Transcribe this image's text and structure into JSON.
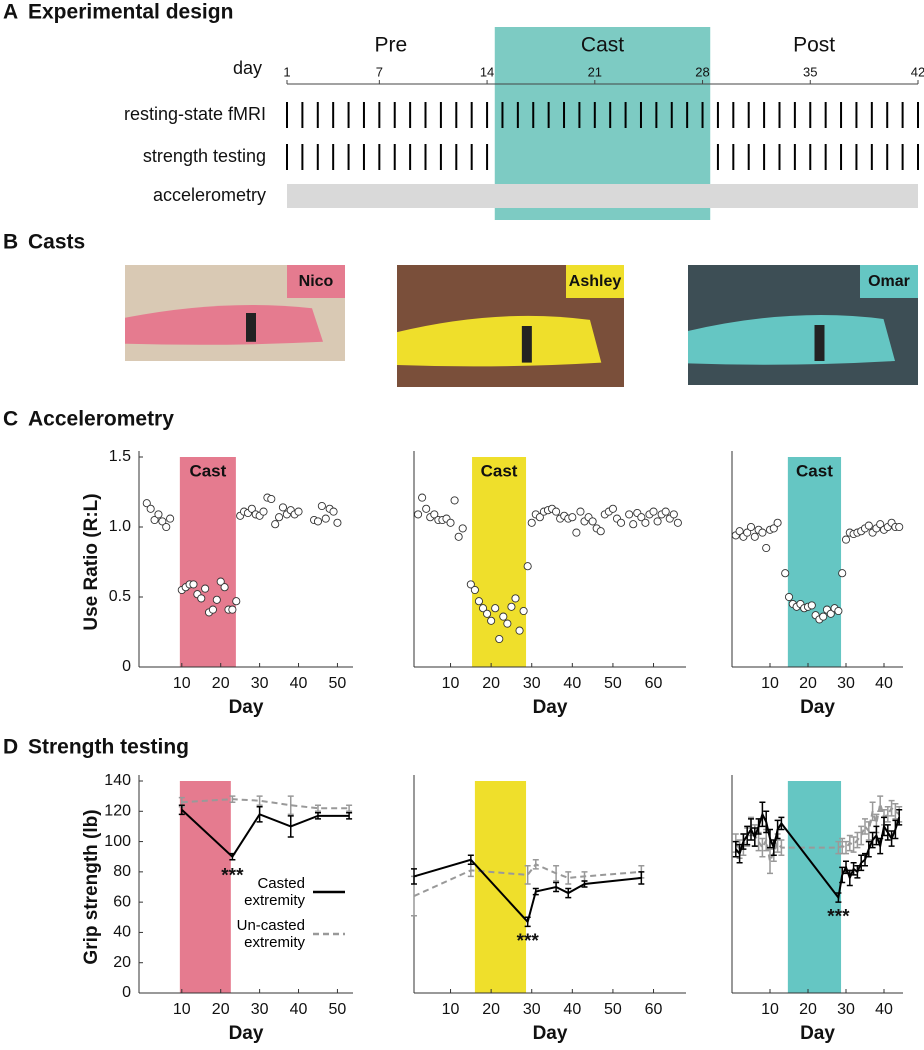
{
  "panels": [
    {
      "letter": "A",
      "title": "Experimental design"
    },
    {
      "letter": "B",
      "title": "Casts"
    },
    {
      "letter": "C",
      "title": "Accelerometry"
    },
    {
      "letter": "D",
      "title": "Strength testing"
    }
  ],
  "design": {
    "type": "timeline",
    "axis_label": "day",
    "xlim": [
      1,
      42
    ],
    "xticks": [
      1,
      7,
      14,
      21,
      28,
      35,
      42
    ],
    "phases": [
      {
        "name": "Pre",
        "range": [
          1,
          14.5
        ]
      },
      {
        "name": "Cast",
        "range": [
          14.5,
          28.5
        ],
        "color": "#7dcbc3"
      },
      {
        "name": "Post",
        "range": [
          28.5,
          42
        ]
      }
    ],
    "rows": [
      {
        "name": "resting-state fMRI",
        "days": [
          1,
          2,
          3,
          4,
          5,
          6,
          7,
          8,
          9,
          10,
          11,
          12,
          13,
          14,
          15,
          16,
          17,
          18,
          19,
          20,
          21,
          22,
          23,
          24,
          25,
          26,
          27,
          28,
          29,
          30,
          31,
          32,
          33,
          34,
          35,
          36,
          37,
          38,
          39,
          40,
          41,
          42
        ]
      },
      {
        "name": "strength testing",
        "days": [
          1,
          2,
          3,
          4,
          5,
          6,
          7,
          8,
          9,
          10,
          11,
          12,
          13,
          14,
          29,
          30,
          31,
          32,
          33,
          34,
          35,
          36,
          37,
          38,
          39,
          40,
          41,
          42
        ]
      },
      {
        "name": "accelerometry",
        "range": [
          1,
          42
        ],
        "color": "#d9d9d9"
      }
    ]
  },
  "casts": [
    {
      "name": "Nico",
      "color": "#e57b8f"
    },
    {
      "name": "Ashley",
      "color": "#efdf2b"
    },
    {
      "name": "Omar",
      "color": "#65c6c3"
    }
  ],
  "chart_data": [
    {
      "type": "scatter",
      "xlabel": "Day",
      "ylabel": "Use Ratio (R:L)",
      "xlim": [
        -1,
        54
      ],
      "xticks": [
        10,
        20,
        30,
        40,
        50
      ],
      "ylim": [
        0,
        1.5
      ],
      "yticks": [
        0,
        0.5,
        {
          "value": 1,
          "label": "1.0"
        },
        1.5
      ],
      "shade": {
        "label": "Cast",
        "range": [
          9.5,
          23.9
        ],
        "color": "#e57b8f"
      },
      "x": [
        1,
        2,
        3,
        4,
        5,
        6,
        7,
        10,
        11,
        12,
        13,
        14,
        15,
        16,
        17,
        18,
        19,
        20,
        21,
        22,
        23,
        24,
        25,
        26,
        27,
        28,
        29,
        30,
        31,
        32,
        33,
        34,
        35,
        36,
        37,
        38,
        39,
        40,
        44,
        45,
        46,
        47,
        48,
        49,
        50
      ],
      "values": [
        1.17,
        1.13,
        1.05,
        1.09,
        1.04,
        1.0,
        1.06,
        0.55,
        0.57,
        0.59,
        0.59,
        0.52,
        0.49,
        0.56,
        0.39,
        0.41,
        0.48,
        0.61,
        0.57,
        0.41,
        0.41,
        0.47,
        1.08,
        1.11,
        1.1,
        1.13,
        1.09,
        1.08,
        1.11,
        1.21,
        1.2,
        1.02,
        1.07,
        1.14,
        1.09,
        1.12,
        1.09,
        1.11,
        1.05,
        1.04,
        1.15,
        1.06,
        1.13,
        1.11,
        1.03
      ]
    },
    {
      "type": "scatter",
      "xlabel": "Day",
      "xlim": [
        1,
        68
      ],
      "xticks": [
        10,
        20,
        30,
        40,
        50,
        60
      ],
      "ylim": [
        0,
        1.5
      ],
      "shade": {
        "label": "Cast",
        "range": [
          15.3,
          28.6
        ],
        "color": "#efdf2b"
      },
      "x": [
        2,
        3,
        4,
        5,
        6,
        7,
        8,
        9,
        10,
        11,
        12,
        13,
        15,
        16,
        17,
        18,
        19,
        20,
        21,
        22,
        23,
        24,
        25,
        26,
        27,
        28,
        29,
        30,
        31,
        32,
        33,
        34,
        35,
        36,
        37,
        38,
        39,
        40,
        41,
        42,
        43,
        44,
        45,
        46,
        47,
        48,
        49,
        50,
        51,
        52,
        54,
        55,
        56,
        57,
        58,
        59,
        60,
        61,
        62,
        63,
        64,
        65,
        66
      ],
      "values": [
        1.09,
        1.21,
        1.13,
        1.07,
        1.09,
        1.05,
        1.05,
        1.06,
        1.03,
        1.19,
        0.93,
        0.99,
        0.59,
        0.55,
        0.47,
        0.42,
        0.38,
        0.33,
        0.42,
        0.2,
        0.36,
        0.31,
        0.43,
        0.49,
        0.26,
        0.4,
        0.72,
        1.03,
        1.09,
        1.07,
        1.11,
        1.12,
        1.13,
        1.11,
        1.06,
        1.08,
        1.06,
        1.07,
        0.96,
        1.11,
        1.04,
        1.07,
        1.04,
        0.99,
        0.97,
        1.09,
        1.11,
        1.13,
        1.06,
        1.03,
        1.09,
        1.02,
        1.1,
        1.07,
        1.03,
        1.09,
        1.11,
        1.04,
        1.09,
        1.11,
        1.06,
        1.09,
        1.03
      ]
    },
    {
      "type": "scatter",
      "xlabel": "Day",
      "xlim": [
        0,
        45
      ],
      "xticks": [
        10,
        20,
        30,
        40
      ],
      "ylim": [
        0,
        1.5
      ],
      "shade": {
        "label": "Cast",
        "range": [
          14.7,
          28.7
        ],
        "color": "#65c6c3"
      },
      "x": [
        1,
        2,
        3,
        4,
        5,
        6,
        7,
        8,
        9,
        10,
        11,
        12,
        14,
        15,
        16,
        17,
        18,
        19,
        20,
        21,
        22,
        23,
        24,
        25,
        26,
        27,
        28,
        29,
        30,
        31,
        32,
        33,
        34,
        35,
        36,
        37,
        38,
        39,
        40,
        41,
        42,
        43,
        44
      ],
      "values": [
        0.94,
        0.97,
        0.93,
        0.96,
        1.0,
        0.93,
        0.98,
        0.96,
        0.85,
        0.98,
        0.99,
        1.03,
        0.67,
        0.5,
        0.45,
        0.43,
        0.45,
        0.42,
        0.43,
        0.44,
        0.37,
        0.34,
        0.36,
        0.41,
        0.38,
        0.42,
        0.4,
        0.67,
        0.91,
        0.96,
        0.95,
        0.96,
        0.97,
        0.99,
        1.01,
        0.96,
        0.99,
        1.02,
        0.98,
        1.0,
        1.03,
        1.0,
        1.0
      ]
    },
    {
      "type": "line",
      "xlabel": "Day",
      "ylabel": "Grip strength (lb)",
      "xlim": [
        -1,
        54
      ],
      "xticks": [
        10,
        20,
        30,
        40,
        50
      ],
      "ylim": [
        0,
        140
      ],
      "yticks": [
        0,
        20,
        40,
        60,
        80,
        100,
        120,
        140
      ],
      "shade": {
        "range": [
          9.5,
          22.6
        ],
        "color": "#e57b8f"
      },
      "annotation": "***",
      "legend": "lower right",
      "series": [
        {
          "name": "Casted extremity",
          "color": "#000000",
          "dash": false,
          "x": [
            10,
            23,
            30,
            38,
            45,
            53
          ],
          "values": [
            121,
            90,
            118,
            110,
            117,
            117
          ],
          "errors": [
            3,
            2,
            5,
            7,
            2,
            2
          ]
        },
        {
          "name": "Un-casted extremity",
          "color": "#999999",
          "dash": true,
          "x": [
            10,
            23,
            30,
            38,
            45,
            53
          ],
          "values": [
            126,
            128,
            127,
            124,
            122,
            122
          ],
          "errors": [
            3,
            2,
            3,
            6,
            2,
            2
          ]
        }
      ]
    },
    {
      "type": "line",
      "xlabel": "Day",
      "xlim": [
        1,
        68
      ],
      "xticks": [
        10,
        20,
        30,
        40,
        50,
        60
      ],
      "ylim": [
        0,
        140
      ],
      "shade": {
        "range": [
          16,
          28.6
        ],
        "color": "#efdf2b"
      },
      "annotation": "***",
      "series": [
        {
          "color": "#000000",
          "dash": false,
          "x": [
            1,
            15,
            29,
            31,
            36,
            39,
            43,
            57
          ],
          "values": [
            77,
            88,
            47,
            67,
            70,
            66,
            72,
            76
          ],
          "errors": [
            5,
            3,
            3,
            2,
            3,
            3,
            2,
            4
          ]
        },
        {
          "color": "#999999",
          "dash": true,
          "x": [
            1,
            15,
            29,
            31,
            36,
            39,
            43,
            57
          ],
          "values": [
            64,
            81,
            78,
            85,
            79,
            76,
            77,
            80
          ],
          "errors": [
            13,
            4,
            6,
            3,
            5,
            4,
            3,
            4
          ]
        }
      ]
    },
    {
      "type": "line",
      "xlabel": "Day",
      "xlim": [
        0,
        45
      ],
      "xticks": [
        10,
        20,
        30,
        40
      ],
      "ylim": [
        0,
        140
      ],
      "shade": {
        "range": [
          14.7,
          28.7
        ],
        "color": "#65c6c3"
      },
      "annotation": "***",
      "series": [
        {
          "color": "#000000",
          "dash": false,
          "x": [
            1,
            2,
            3,
            4,
            5,
            6,
            7,
            8,
            9,
            10,
            11,
            12,
            13,
            28,
            29,
            30,
            31,
            32,
            33,
            34,
            35,
            36,
            37,
            38,
            39,
            40,
            41,
            42,
            43,
            44
          ],
          "values": [
            95,
            92,
            100,
            104,
            108,
            103,
            110,
            118,
            113,
            102,
            96,
            108,
            112,
            63,
            78,
            83,
            76,
            82,
            80,
            86,
            88,
            95,
            101,
            104,
            97,
            110,
            106,
            102,
            108,
            116
          ],
          "errors": [
            5,
            6,
            5,
            6,
            7,
            6,
            5,
            8,
            7,
            6,
            5,
            6,
            4,
            3,
            5,
            4,
            5,
            4,
            4,
            5,
            4,
            5,
            5,
            6,
            5,
            6,
            5,
            5,
            6,
            5
          ]
        },
        {
          "color": "#999999",
          "dash": true,
          "x": [
            1,
            2,
            3,
            4,
            5,
            6,
            7,
            8,
            9,
            10,
            11,
            12,
            13,
            28,
            29,
            30,
            31,
            32,
            33,
            34,
            35,
            36,
            37,
            38,
            39,
            40,
            41,
            42,
            43,
            44
          ],
          "values": [
            99,
            95,
            98,
            103,
            110,
            104,
            100,
            96,
            101,
            87,
            93,
            99,
            96,
            96,
            97,
            96,
            99,
            98,
            101,
            104,
            110,
            107,
            120,
            112,
            125,
            116,
            118,
            122,
            120,
            118
          ],
          "errors": [
            6,
            6,
            7,
            6,
            6,
            7,
            6,
            6,
            7,
            8,
            6,
            6,
            5,
            4,
            5,
            4,
            5,
            5,
            5,
            6,
            5,
            6,
            6,
            6,
            5,
            5,
            5,
            5,
            5,
            5
          ]
        }
      ]
    }
  ]
}
